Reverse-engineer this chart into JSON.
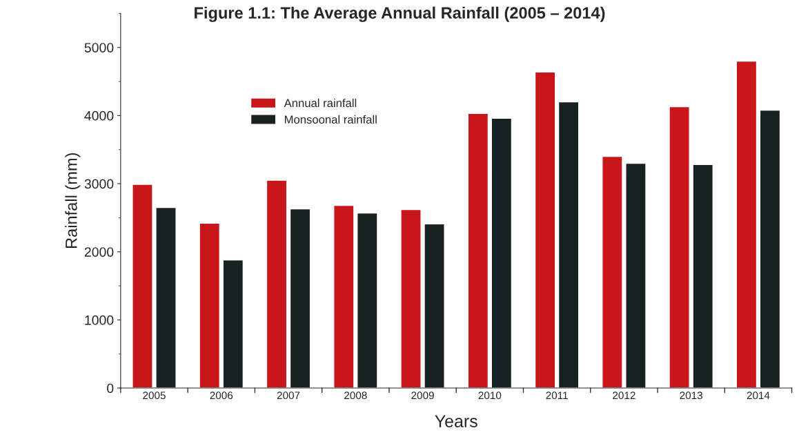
{
  "chart_data": {
    "type": "bar",
    "title": "Figure 1.1: The Average Annual Rainfall (2005 – 2014)",
    "xlabel": "Years",
    "ylabel": "Rainfall (mm)",
    "categories": [
      "2005",
      "2006",
      "2007",
      "2008",
      "2009",
      "2010",
      "2011",
      "2012",
      "2013",
      "2014"
    ],
    "series": [
      {
        "name": "Annual rainfall",
        "color": "#c8161b",
        "values": [
          2990,
          2420,
          3050,
          2680,
          2620,
          4030,
          4640,
          3400,
          4130,
          4800
        ]
      },
      {
        "name": "Monsoonal rainfall",
        "color": "#182223",
        "values": [
          2650,
          1880,
          2630,
          2570,
          2410,
          3960,
          4200,
          3300,
          3280,
          4080
        ]
      }
    ],
    "ylim": [
      0,
      5500
    ],
    "yticks": [
      0,
      1000,
      2000,
      3000,
      4000,
      5000
    ],
    "grid": false,
    "legend": "top left"
  }
}
